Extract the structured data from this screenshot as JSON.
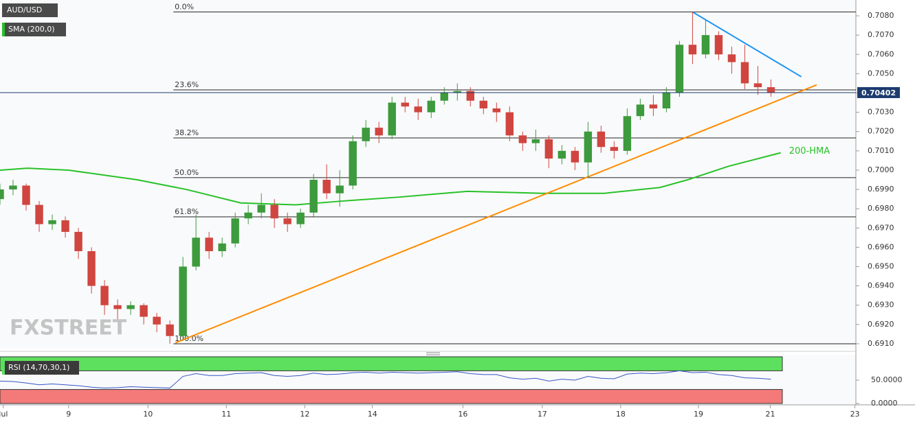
{
  "chart_data": {
    "type": "candlestick",
    "title": "AUD/USD",
    "up_color": "#3d9a3d",
    "down_color": "#d0453f",
    "x": [
      0,
      4,
      8,
      12,
      16,
      20,
      24,
      28,
      32,
      36,
      40,
      44,
      48,
      52,
      56,
      60,
      64,
      68,
      72,
      76,
      80,
      84,
      88,
      92,
      96,
      100,
      104,
      108,
      112,
      116,
      120,
      124,
      128,
      132,
      136,
      140,
      144,
      148,
      152,
      156,
      160,
      164,
      168,
      172,
      176,
      180,
      184,
      188,
      192,
      196,
      200,
      204,
      208,
      212,
      216,
      220,
      224,
      228,
      232,
      236
    ],
    "open": [
      0.6985,
      0.699,
      0.6992,
      0.6982,
      0.6972,
      0.6974,
      0.6968,
      0.6958,
      0.694,
      0.693,
      0.6928,
      0.693,
      0.6924,
      0.692,
      0.6914,
      0.695,
      0.6965,
      0.6958,
      0.6962,
      0.6975,
      0.6978,
      0.6982,
      0.6975,
      0.6972,
      0.6978,
      0.6995,
      0.6988,
      0.6992,
      0.7015,
      0.7022,
      0.7018,
      0.7035,
      0.7033,
      0.703,
      0.7036,
      0.704,
      0.7041,
      0.7036,
      0.7032,
      0.703,
      0.7018,
      0.7014,
      0.7016,
      0.7006,
      0.701,
      0.7004,
      0.702,
      0.7012,
      0.701,
      0.7028,
      0.7034,
      0.7032,
      0.704,
      0.7065,
      0.706,
      0.707,
      0.706,
      0.7056,
      0.7045,
      0.7043
    ],
    "high": [
      0.6993,
      0.6995,
      0.6993,
      0.6984,
      0.6977,
      0.6976,
      0.697,
      0.696,
      0.6943,
      0.6933,
      0.6932,
      0.6931,
      0.6926,
      0.6922,
      0.6955,
      0.6977,
      0.6968,
      0.6965,
      0.6978,
      0.6982,
      0.6988,
      0.6985,
      0.6978,
      0.698,
      0.6998,
      0.7003,
      0.7,
      0.7018,
      0.7026,
      0.7025,
      0.7038,
      0.7038,
      0.7037,
      0.7038,
      0.7043,
      0.7045,
      0.7043,
      0.7038,
      0.7035,
      0.7033,
      0.702,
      0.7021,
      0.7018,
      0.7013,
      0.7012,
      0.7025,
      0.7023,
      0.7015,
      0.7032,
      0.7037,
      0.7039,
      0.7043,
      0.7067,
      0.7082,
      0.7078,
      0.7072,
      0.7064,
      0.7065,
      0.7054,
      0.7047
    ],
    "low": [
      0.6982,
      0.6987,
      0.6979,
      0.6968,
      0.6969,
      0.6965,
      0.6954,
      0.6936,
      0.6925,
      0.6922,
      0.6925,
      0.692,
      0.6916,
      0.691,
      0.6912,
      0.6948,
      0.6954,
      0.6955,
      0.696,
      0.6972,
      0.6975,
      0.697,
      0.6968,
      0.697,
      0.6976,
      0.6985,
      0.6981,
      0.699,
      0.7012,
      0.7014,
      0.7016,
      0.703,
      0.7026,
      0.7027,
      0.7034,
      0.7036,
      0.7033,
      0.7029,
      0.7025,
      0.7015,
      0.701,
      0.701,
      0.7001,
      0.7003,
      0.7,
      0.6996,
      0.7009,
      0.7006,
      0.7008,
      0.7026,
      0.7028,
      0.703,
      0.7038,
      0.7055,
      0.7058,
      0.7057,
      0.705,
      0.7042,
      0.7039,
      0.7038
    ],
    "close": [
      0.699,
      0.6992,
      0.6982,
      0.6972,
      0.6974,
      0.6968,
      0.6958,
      0.694,
      0.693,
      0.6928,
      0.693,
      0.6924,
      0.692,
      0.6914,
      0.695,
      0.6965,
      0.6958,
      0.6962,
      0.6975,
      0.6978,
      0.6982,
      0.6975,
      0.6972,
      0.6978,
      0.6995,
      0.6988,
      0.6992,
      0.7015,
      0.7022,
      0.7018,
      0.7035,
      0.7033,
      0.703,
      0.7036,
      0.704,
      0.7041,
      0.7036,
      0.7032,
      0.703,
      0.7018,
      0.7014,
      0.7016,
      0.7006,
      0.701,
      0.7004,
      0.702,
      0.7012,
      0.701,
      0.7028,
      0.7034,
      0.7032,
      0.704,
      0.7065,
      0.706,
      0.707,
      0.706,
      0.7056,
      0.7045,
      0.7043,
      0.70402
    ],
    "last_price": 0.70402,
    "last_price_color": "#1c3b6e",
    "series": [
      {
        "name": "SMA (200,0)",
        "label": "200-HMA",
        "color": "#27c227",
        "x": [
          0,
          8.4,
          21,
          42,
          57,
          73.7,
          90.5,
          105,
          122,
          143,
          166,
          185,
          202,
          210.5,
          223,
          239
        ],
        "values": [
          0.7,
          0.7001,
          0.7,
          0.6995,
          0.699,
          0.6983,
          0.6982,
          0.6984,
          0.6986,
          0.6989,
          0.6988,
          0.6988,
          0.6991,
          0.6995,
          0.7002,
          0.7009
        ]
      }
    ],
    "trendlines": [
      {
        "color": "#ff8c00",
        "x": [
          53.7,
          250
        ],
        "values": [
          0.69105,
          0.70442
        ]
      },
      {
        "color": "#2196f3",
        "x": [
          212.2,
          245.3
        ],
        "values": [
          0.70818,
          0.70484
        ]
      }
    ],
    "fib_levels": [
      {
        "label": "0.0%",
        "value": 0.7082
      },
      {
        "label": "23.6%",
        "value": 0.70416
      },
      {
        "label": "38.2%",
        "value": 0.70167
      },
      {
        "label": "50.0%",
        "value": 0.69961
      },
      {
        "label": "61.8%",
        "value": 0.69758
      },
      {
        "label": "100.0%",
        "value": 0.691
      }
    ],
    "watermark": "FXSTREET",
    "xlim": [
      0,
      262
    ],
    "xticks": [
      {
        "value": 1,
        "label": "Jul"
      },
      {
        "value": 21,
        "label": "9"
      },
      {
        "value": 45.3,
        "label": "10"
      },
      {
        "value": 69.3,
        "label": "11"
      },
      {
        "value": 93.3,
        "label": "12"
      },
      {
        "value": 114,
        "label": "14"
      },
      {
        "value": 141.7,
        "label": "16"
      },
      {
        "value": 166,
        "label": "17"
      },
      {
        "value": 190,
        "label": "18"
      },
      {
        "value": 213.8,
        "label": "19"
      },
      {
        "value": 235.8,
        "label": "21"
      },
      {
        "value": 261.7,
        "label": "23"
      }
    ],
    "ylim": [
      0.69075,
      0.70882
    ],
    "yticks": [
      {
        "value": 0.691,
        "label": "0.6910"
      },
      {
        "value": 0.692,
        "label": "0.6920"
      },
      {
        "value": 0.693,
        "label": "0.6930"
      },
      {
        "value": 0.694,
        "label": "0.6940"
      },
      {
        "value": 0.695,
        "label": "0.6950"
      },
      {
        "value": 0.696,
        "label": "0.6960"
      },
      {
        "value": 0.697,
        "label": "0.6970"
      },
      {
        "value": 0.698,
        "label": "0.6980"
      },
      {
        "value": 0.699,
        "label": "0.6990"
      },
      {
        "value": 0.7,
        "label": "0.7000"
      },
      {
        "value": 0.701,
        "label": "0.7010"
      },
      {
        "value": 0.702,
        "label": "0.7020"
      },
      {
        "value": 0.703,
        "label": "0.7030"
      },
      {
        "value": 0.704,
        "label": "0.7040"
      },
      {
        "value": 0.705,
        "label": "0.7050"
      },
      {
        "value": 0.706,
        "label": "0.7060"
      },
      {
        "value": 0.707,
        "label": "0.7070"
      },
      {
        "value": 0.708,
        "label": "0.7080"
      }
    ],
    "rsi": {
      "label": "RSI (14,70,30,1)",
      "color": "#3455c8",
      "upper": 70,
      "lower": 30,
      "upper_color": "#5de05d",
      "lower_color": "#f47a7a",
      "ylim": [
        0,
        100
      ],
      "yticks": [
        {
          "value": 0,
          "label": "0.0000"
        },
        {
          "value": 50,
          "label": "50.0000"
        }
      ],
      "values": [
        48,
        47,
        44,
        40,
        42,
        40,
        38,
        35,
        33,
        34,
        36,
        35,
        34,
        33,
        58,
        64,
        60,
        60,
        64,
        65,
        66,
        60,
        58,
        60,
        65,
        62,
        63,
        66,
        67,
        65,
        67,
        66,
        65,
        66,
        67,
        68,
        64,
        62,
        62,
        55,
        52,
        54,
        48,
        52,
        50,
        58,
        54,
        53,
        63,
        65,
        64,
        66,
        70,
        66,
        67,
        62,
        60,
        55,
        54,
        52
      ]
    }
  }
}
